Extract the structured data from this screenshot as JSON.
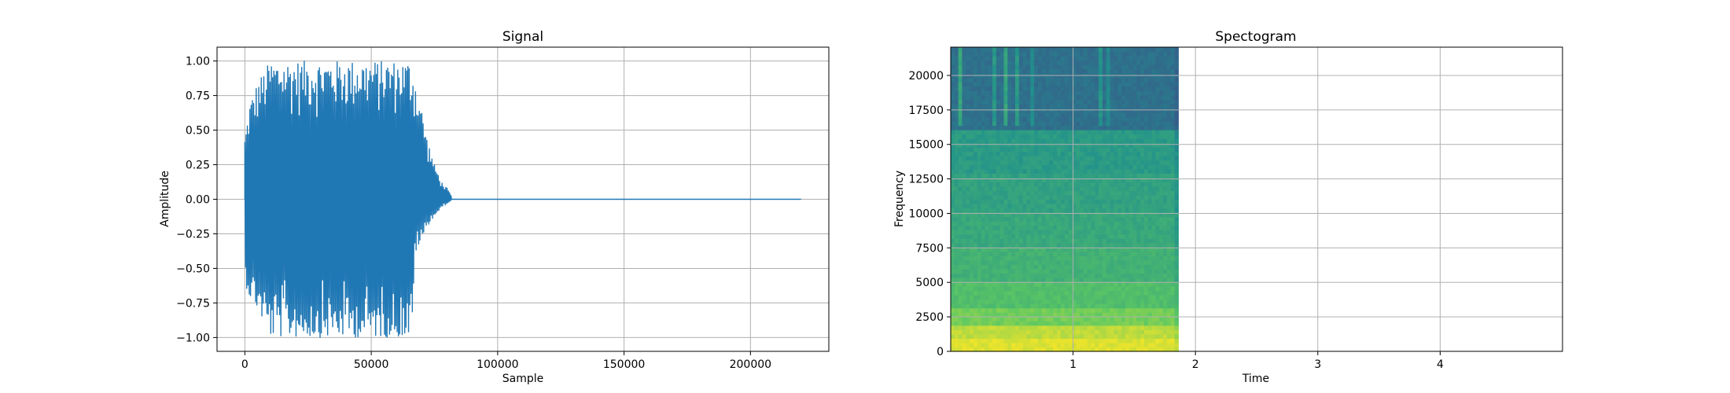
{
  "chart_data": [
    {
      "type": "line",
      "title": "Signal",
      "xlabel": "Sample",
      "ylabel": "Amplitude",
      "xlim": [
        -11000,
        231000
      ],
      "ylim": [
        -1.1,
        1.1
      ],
      "xticks": [
        0,
        50000,
        100000,
        150000,
        200000
      ],
      "xtick_labels": [
        "0",
        "50000",
        "100000",
        "150000",
        "200000"
      ],
      "yticks": [
        1.0,
        0.75,
        0.5,
        0.25,
        0.0,
        -0.25,
        -0.5,
        -0.75,
        -1.0
      ],
      "ytick_labels": [
        "1.00",
        "0.75",
        "0.50",
        "0.25",
        "0.00",
        "−0.25",
        "−0.50",
        "−0.75",
        "−1.00"
      ],
      "grid": true,
      "color": "#1f77b4",
      "series": [
        {
          "name": "signal",
          "envelope": {
            "x": [
              0,
              2000,
              5000,
              10000,
              20000,
              30000,
              40000,
              50000,
              60000,
              65000,
              66500,
              67000,
              70000,
              72000,
              75000,
              78000,
              80000,
              81500,
              82000,
              220000
            ],
            "max": [
              0.45,
              0.7,
              0.85,
              1.0,
              1.0,
              1.0,
              1.0,
              1.0,
              1.0,
              1.0,
              0.95,
              0.9,
              0.65,
              0.45,
              0.25,
              0.12,
              0.08,
              0.03,
              0.0,
              0.0
            ],
            "min": [
              -0.6,
              -0.72,
              -0.8,
              -1.0,
              -1.0,
              -1.0,
              -1.0,
              -1.0,
              -1.0,
              -1.0,
              -1.0,
              -0.4,
              -0.3,
              -0.2,
              -0.12,
              -0.06,
              -0.03,
              -0.01,
              0.0,
              0.0
            ]
          }
        }
      ]
    },
    {
      "type": "heatmap",
      "title": "Spectogram",
      "xlabel": "Time",
      "ylabel": "Frequency",
      "xlim": [
        0,
        5.0
      ],
      "ylim": [
        0,
        22050
      ],
      "xticks": [
        1,
        2,
        3,
        4
      ],
      "xtick_labels": [
        "1",
        "2",
        "3",
        "4"
      ],
      "yticks": [
        0,
        2500,
        5000,
        7500,
        10000,
        12500,
        15000,
        17500,
        20000
      ],
      "ytick_labels": [
        "0",
        "2500",
        "5000",
        "7500",
        "10000",
        "12500",
        "15000",
        "17500",
        "20000"
      ],
      "grid": true,
      "colormap": "viridis",
      "data_end_time": 1.86,
      "cutoff_frequency": 16200,
      "intensity_bands": [
        {
          "freq_from": 0,
          "freq_to": 1000,
          "level": 0.95
        },
        {
          "freq_from": 1000,
          "freq_to": 2000,
          "level": 0.9
        },
        {
          "freq_from": 2000,
          "freq_to": 3000,
          "level": 0.78
        },
        {
          "freq_from": 3000,
          "freq_to": 5000,
          "level": 0.7
        },
        {
          "freq_from": 5000,
          "freq_to": 7500,
          "level": 0.64
        },
        {
          "freq_from": 7500,
          "freq_to": 10000,
          "level": 0.6
        },
        {
          "freq_from": 10000,
          "freq_to": 13000,
          "level": 0.57
        },
        {
          "freq_from": 13000,
          "freq_to": 16200,
          "level": 0.54
        },
        {
          "freq_from": 16200,
          "freq_to": 22050,
          "level": 0.37
        }
      ]
    }
  ]
}
